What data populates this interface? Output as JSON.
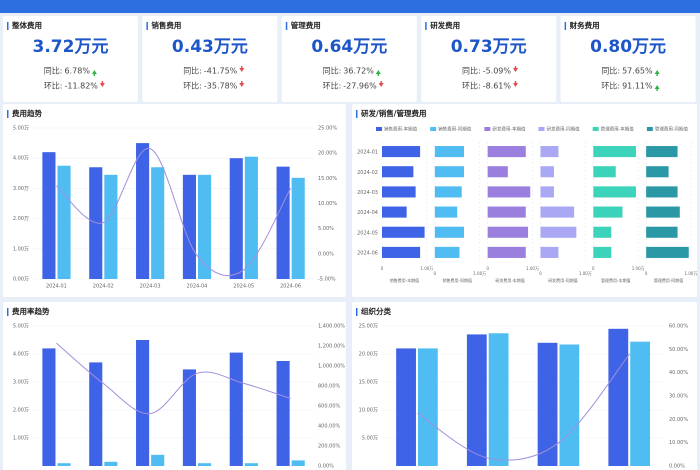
{
  "cards": [
    {
      "title": "整体费用",
      "value": "3.72万元",
      "yoy_label": "同比:",
      "yoy": "6.78%",
      "yoy_arrow": "up",
      "mom_label": "环比:",
      "mom": "-11.82%",
      "mom_arrow": "down"
    },
    {
      "title": "销售费用",
      "value": "0.43万元",
      "yoy_label": "同比:",
      "yoy": "-41.75%",
      "yoy_arrow": "down",
      "mom_label": "环比:",
      "mom": "-35.78%",
      "mom_arrow": "down"
    },
    {
      "title": "管理费用",
      "value": "0.64万元",
      "yoy_label": "同比:",
      "yoy": "36.72%",
      "yoy_arrow": "up",
      "mom_label": "环比:",
      "mom": "-27.96%",
      "mom_arrow": "down"
    },
    {
      "title": "研发费用",
      "value": "0.73万元",
      "yoy_label": "同比:",
      "yoy": "-5.09%",
      "yoy_arrow": "down",
      "mom_label": "环比:",
      "mom": "-8.61%",
      "mom_arrow": "down"
    },
    {
      "title": "财务费用",
      "value": "0.80万元",
      "yoy_label": "同比:",
      "yoy": "57.65%",
      "yoy_arrow": "up",
      "mom_label": "环比:",
      "mom": "91.11%",
      "mom_arrow": "up"
    }
  ],
  "chart_data": [
    {
      "type": "bar",
      "title": "费用趋势",
      "categories": [
        "2024-01",
        "2024-02",
        "2024-03",
        "2024-04",
        "2024-05",
        "2024-06"
      ],
      "series": [
        {
          "color": "#3f63e6",
          "values": [
            4.2,
            3.7,
            4.5,
            3.45,
            4.0,
            3.72
          ]
        },
        {
          "color": "#4fbdf2",
          "values": [
            3.75,
            3.45,
            3.7,
            3.45,
            4.05,
            3.35
          ]
        },
        {
          "color": "#a18fdc",
          "type": "line",
          "axis": "y2",
          "values": [
            13.5,
            6.2,
            20.9,
            -0.3,
            -3.2,
            13
          ]
        }
      ],
      "ylim": [
        0,
        5
      ],
      "yticks": [
        {
          "value": 0,
          "label": "0.00万"
        },
        {
          "value": 1,
          "label": "1.00万"
        },
        {
          "value": 2,
          "label": "2.00万"
        },
        {
          "value": 3,
          "label": "3.00万"
        },
        {
          "value": 4,
          "label": "4.00万"
        },
        {
          "value": 5,
          "label": "5.00万"
        }
      ],
      "y2lim": [
        -5,
        25
      ],
      "y2ticks": [
        {
          "value": -5,
          "label": "-5.00%"
        },
        {
          "value": 0,
          "label": "0.00%"
        },
        {
          "value": 5,
          "label": "5.00%"
        },
        {
          "value": 10,
          "label": "10.00%"
        },
        {
          "value": 15,
          "label": "15.00%"
        },
        {
          "value": 20,
          "label": "20.00%"
        },
        {
          "value": 25,
          "label": "25.00%"
        }
      ],
      "grid": true
    },
    {
      "type": "barh",
      "title": "研发/销售/管理费用",
      "categories": [
        "2024-01",
        "2024-02",
        "2024-03",
        "2024-04",
        "2024-05",
        "2024-06"
      ],
      "series": [
        {
          "name": "销售费用-本期值",
          "color": "#3f63e6",
          "values": [
            0.85,
            0.7,
            0.75,
            0.55,
            0.95,
            0.85
          ]
        },
        {
          "name": "销售费用-同期值",
          "color": "#4fbdf2",
          "values": [
            0.65,
            0.65,
            0.6,
            0.5,
            0.65,
            0.55
          ]
        },
        {
          "name": "研发费用-本期值",
          "color": "#9a7fdf",
          "values": [
            0.85,
            0.45,
            0.95,
            0.85,
            0.9,
            0.85
          ]
        },
        {
          "name": "研发费用-同期值",
          "color": "#aaa8f4",
          "values": [
            0.4,
            0.3,
            0.3,
            0.75,
            0.8,
            0.4
          ]
        },
        {
          "name": "管理费用-本期值",
          "color": "#3bd3b9",
          "values": [
            0.95,
            0.5,
            0.95,
            0.65,
            0.4,
            0.4
          ]
        },
        {
          "name": "管理费用-同期值",
          "color": "#2b98a6",
          "values": [
            0.7,
            0.5,
            0.7,
            0.75,
            0.7,
            0.95
          ]
        }
      ],
      "xlim": [
        0,
        1
      ],
      "xticks": [
        0,
        {
          "value": 1,
          "label": "1.00万"
        }
      ],
      "grid": true
    },
    {
      "type": "bar",
      "title": "费用率趋势",
      "categories": [
        null,
        null,
        null,
        null,
        null,
        null
      ],
      "series": [
        {
          "color": "#3f63e6",
          "values": [
            4.2,
            3.7,
            4.5,
            3.45,
            4.05,
            3.75
          ]
        },
        {
          "color": "#4fbdf2",
          "values": [
            0.1,
            0.15,
            0.4,
            0.1,
            0.1,
            0.2
          ]
        },
        {
          "color": "#a18fdc",
          "type": "line",
          "axis": "y2",
          "values": [
            1229,
            826,
            524,
            927,
            826,
            675
          ]
        }
      ],
      "ylim": [
        0,
        5
      ],
      "yticks": [
        {
          "value": 1,
          "label": "1.00万"
        },
        {
          "value": 2,
          "label": "2.00万"
        },
        {
          "value": 3,
          "label": "3.00万"
        },
        {
          "value": 4,
          "label": "4.00万"
        },
        {
          "value": 5,
          "label": "5.00万"
        }
      ],
      "y2lim": [
        0,
        1400
      ],
      "y2ticks": [
        {
          "value": 0,
          "label": "0.00%"
        },
        {
          "value": 200,
          "label": "200.00%"
        },
        {
          "value": 400,
          "label": "400.00%"
        },
        {
          "value": 600,
          "label": "600.00%"
        },
        {
          "value": 800,
          "label": "800.00%"
        },
        {
          "value": 1000,
          "label": "1,000.00%"
        },
        {
          "value": 1200,
          "label": "1,200.00%"
        },
        {
          "value": 1400,
          "label": "1,400.00%"
        }
      ],
      "grid": true
    },
    {
      "type": "bar",
      "title": "组织分类",
      "categories": [
        null,
        null,
        null,
        null
      ],
      "series": [
        {
          "color": "#3f63e6",
          "values": [
            21,
            23.5,
            22,
            24.5
          ]
        },
        {
          "color": "#4fbdf2",
          "values": [
            21,
            23.7,
            21.7,
            22.2
          ]
        },
        {
          "color": "#a18fdc",
          "type": "line",
          "axis": "y2",
          "values": [
            22.7,
            3.4,
            10,
            48
          ]
        }
      ],
      "ylim": [
        0,
        25
      ],
      "yticks": [
        {
          "value": 5,
          "label": "5.00万"
        },
        {
          "value": 10,
          "label": "10.00万"
        },
        {
          "value": 15,
          "label": "15.00万"
        },
        {
          "value": 20,
          "label": "20.00万"
        },
        {
          "value": 25,
          "label": "25.00万"
        }
      ],
      "y2lim": [
        0,
        60
      ],
      "y2ticks": [
        {
          "value": 0,
          "label": "0.00%"
        },
        {
          "value": 10,
          "label": "10.00%"
        },
        {
          "value": 20,
          "label": "20.00%"
        },
        {
          "value": 30,
          "label": "30.00%"
        },
        {
          "value": 40,
          "label": "40.00%"
        },
        {
          "value": 50,
          "label": "50.00%"
        },
        {
          "value": 60,
          "label": "60.00%"
        }
      ],
      "grid": true
    }
  ]
}
